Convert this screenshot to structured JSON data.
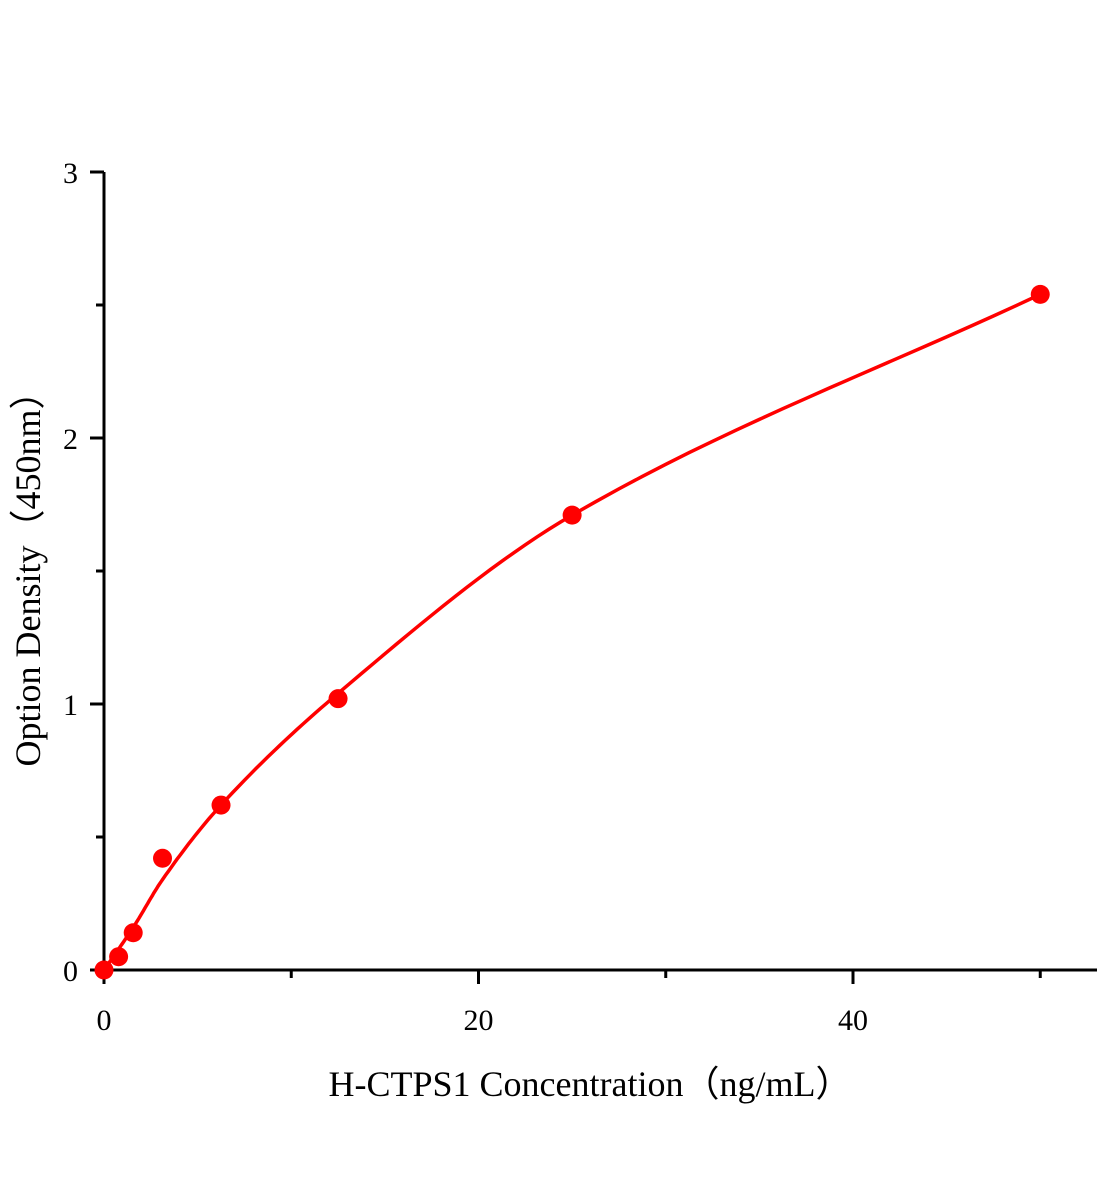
{
  "chart_data": {
    "type": "scatter",
    "title": "",
    "xlabel": "H-CTPS1 Concentration（ng/mL）",
    "ylabel": "Option Density（450nm）",
    "xlim": [
      0,
      53
    ],
    "ylim": [
      0,
      3
    ],
    "x_ticks": [
      0,
      20,
      40
    ],
    "x_tick_labels": [
      "0",
      "20",
      "40"
    ],
    "x_minor_ticks": [
      10,
      30,
      50
    ],
    "y_ticks": [
      0,
      1,
      2,
      3
    ],
    "y_tick_labels": [
      "0",
      "1",
      "2",
      "3"
    ],
    "y_minor_ticks": [
      0.5,
      1.5,
      2.5
    ],
    "grid": false,
    "color": "#ff0000",
    "series": [
      {
        "x": [
          0,
          0.78,
          1.56,
          3.125,
          6.25,
          12.5,
          25,
          50
        ],
        "y": [
          0,
          0.05,
          0.14,
          0.42,
          0.62,
          1.02,
          1.71,
          2.54
        ]
      }
    ],
    "fit_curve": {
      "x": [
        0,
        1.56,
        3.125,
        6.25,
        12.5,
        25,
        50
      ],
      "y": [
        0,
        0.16,
        0.34,
        0.62,
        1.04,
        1.71,
        2.54
      ]
    }
  }
}
